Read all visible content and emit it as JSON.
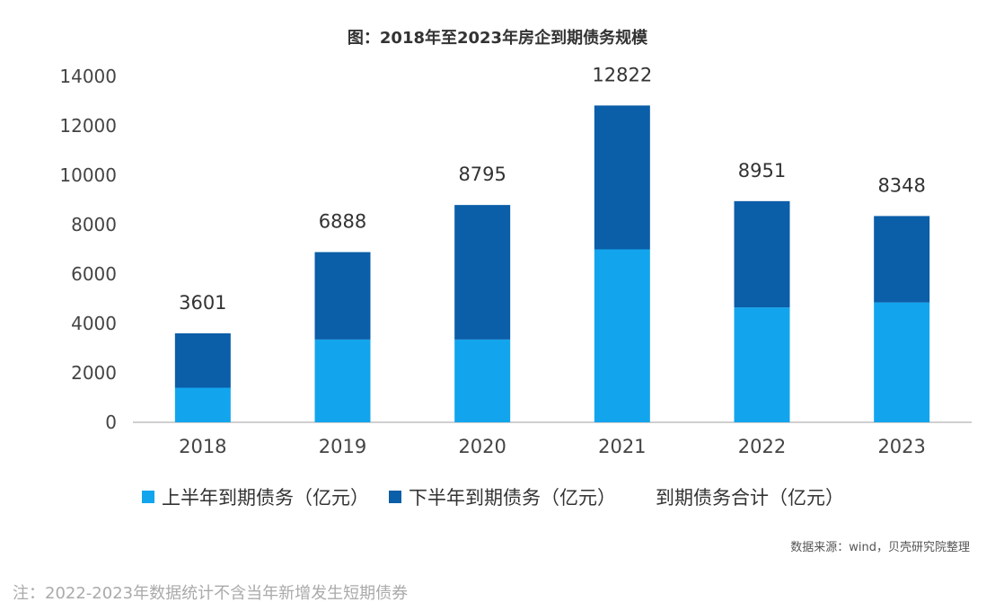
{
  "chart_data": {
    "type": "bar",
    "stacked": true,
    "title": "图：2018年至2023年房企到期债务规模",
    "categories": [
      "2018",
      "2019",
      "2020",
      "2021",
      "2022",
      "2023"
    ],
    "series": [
      {
        "name": "上半年到期债务（亿元）",
        "color": "#12a5ee",
        "values": [
          1400,
          3350,
          3350,
          7000,
          4650,
          4850
        ]
      },
      {
        "name": "下半年到期债务（亿元）",
        "color": "#0b5ea8",
        "values": [
          2201,
          3538,
          5445,
          5822,
          4301,
          3498
        ]
      }
    ],
    "totals": {
      "name": "到期债务合计（亿元）",
      "values": [
        3601,
        6888,
        8795,
        12822,
        8951,
        8348
      ]
    },
    "ylim": [
      0,
      14000
    ],
    "yticks": [
      0,
      2000,
      4000,
      6000,
      8000,
      10000,
      12000,
      14000
    ],
    "grid": false,
    "legend_position": "bottom"
  },
  "source": "数据来源：wind，贝壳研究院整理",
  "note": "注：2022-2023年数据统计不含当年新增发生短期债券"
}
